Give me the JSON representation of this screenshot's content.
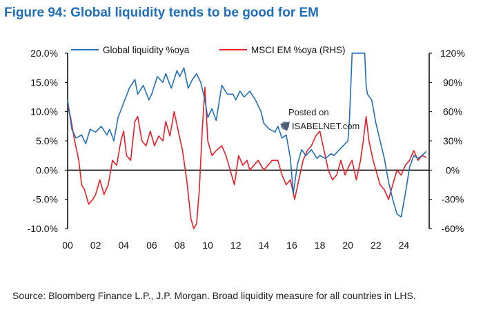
{
  "title": "Figure 94: Global liquidity tends to be good for EM",
  "source": "Source: Bloomberg Finance L.P., J.P. Morgan. Broad liquidity measure for all countries in LHS.",
  "watermark": {
    "posted": "Posted on",
    "site": "ISABELNET.com"
  },
  "colors": {
    "title": "#1f6fbf",
    "liquidity": "#1f6fbf",
    "msci": "#ee1c24",
    "axis": "#000000"
  },
  "chart_data": {
    "type": "line",
    "title": "Figure 94: Global liquidity tends to be good for EM",
    "xlabel": "",
    "ylabel": "",
    "x_ticks": [
      "00",
      "02",
      "04",
      "06",
      "08",
      "10",
      "12",
      "14",
      "16",
      "18",
      "20",
      "22",
      "24"
    ],
    "x_range": [
      2000,
      2025.8
    ],
    "y_left": {
      "ticks": [
        "20.0%",
        "15.0%",
        "10.0%",
        "5.0%",
        "0.0%",
        "-5.0%",
        "-10.0%"
      ],
      "range": [
        -10,
        20
      ]
    },
    "y_right": {
      "ticks": [
        "120%",
        "90%",
        "60%",
        "30%",
        "0%",
        "-30%",
        "-60%"
      ],
      "range": [
        -60,
        120
      ]
    },
    "legend_position": "top",
    "series": [
      {
        "name": "Global liquidity %oya",
        "axis": "left",
        "color": "#1f6fbf",
        "x": [
          2000,
          2000.3,
          2000.6,
          2001,
          2001.3,
          2001.6,
          2002,
          2002.4,
          2002.8,
          2003,
          2003.3,
          2003.6,
          2004,
          2004.4,
          2004.8,
          2005,
          2005.4,
          2005.8,
          2006,
          2006.4,
          2006.8,
          2007,
          2007.4,
          2007.8,
          2008,
          2008.3,
          2008.6,
          2008.9,
          2009.2,
          2009.5,
          2009.8,
          2010,
          2010.3,
          2010.6,
          2011,
          2011.4,
          2011.8,
          2012,
          2012.3,
          2012.6,
          2013,
          2013.4,
          2013.8,
          2014,
          2014.4,
          2014.8,
          2015,
          2015.3,
          2015.6,
          2015.9,
          2016.1,
          2016.4,
          2016.7,
          2017,
          2017.4,
          2017.8,
          2018,
          2018.4,
          2018.8,
          2019,
          2019.4,
          2019.8,
          2020,
          2020.1,
          2020.2,
          2020.3,
          2020.4,
          2020.5,
          2020.6,
          2021,
          2021.1,
          2021.2,
          2021.3,
          2021.4,
          2021.7,
          2022,
          2022.3,
          2022.6,
          2022.9,
          2023.2,
          2023.5,
          2023.8,
          2024.1,
          2024.4,
          2024.7,
          2025,
          2025.3,
          2025.6
        ],
        "values": [
          12.0,
          7.0,
          5.5,
          6.0,
          4.5,
          7.0,
          6.5,
          7.5,
          6.0,
          7.0,
          5.0,
          9.0,
          11.5,
          14.0,
          15.5,
          13.0,
          14.5,
          12.0,
          13.0,
          16.0,
          15.0,
          16.5,
          14.0,
          17.0,
          16.0,
          17.5,
          14.0,
          15.5,
          16.5,
          15.0,
          12.0,
          9.0,
          10.5,
          8.5,
          14.5,
          13.0,
          13.0,
          12.0,
          13.5,
          12.5,
          13.5,
          12.0,
          10.0,
          8.0,
          7.0,
          6.5,
          7.5,
          5.5,
          6.0,
          2.0,
          -4.0,
          1.0,
          3.5,
          2.5,
          3.5,
          2.0,
          2.5,
          2.0,
          2.8,
          2.5,
          3.5,
          4.5,
          5.0,
          8.0,
          14.0,
          20.0,
          20.0,
          20.0,
          20.0,
          20.0,
          20.0,
          20.0,
          14.5,
          13.0,
          12.0,
          8.0,
          5.0,
          2.0,
          -2.0,
          -5.0,
          -7.5,
          -8.0,
          -4.0,
          0.5,
          2.5,
          2.0,
          2.5,
          3.2
        ]
      },
      {
        "name": "MSCI EM %oya (RHS)",
        "axis": "right",
        "color": "#ee1c24",
        "x": [
          2000,
          2000.2,
          2000.5,
          2000.8,
          2001,
          2001.2,
          2001.5,
          2001.8,
          2002,
          2002.3,
          2002.6,
          2002.9,
          2003.2,
          2003.5,
          2003.8,
          2004,
          2004.2,
          2004.5,
          2004.8,
          2005,
          2005.3,
          2005.6,
          2005.9,
          2006.2,
          2006.5,
          2006.8,
          2007,
          2007.3,
          2007.6,
          2007.9,
          2008.2,
          2008.5,
          2008.8,
          2009,
          2009.2,
          2009.4,
          2009.6,
          2009.8,
          2010,
          2010.3,
          2010.6,
          2011,
          2011.3,
          2011.6,
          2011.9,
          2012.2,
          2012.5,
          2012.8,
          2013,
          2013.3,
          2013.6,
          2014,
          2014.3,
          2014.6,
          2015,
          2015.3,
          2015.6,
          2015.9,
          2016.2,
          2016.5,
          2016.8,
          2017.1,
          2017.4,
          2017.7,
          2018,
          2018.3,
          2018.6,
          2018.9,
          2019.2,
          2019.5,
          2019.8,
          2020.1,
          2020.3,
          2020.6,
          2020.9,
          2021.1,
          2021.3,
          2021.5,
          2021.8,
          2022,
          2022.3,
          2022.6,
          2022.9,
          2023.2,
          2023.5,
          2023.8,
          2024.1,
          2024.4,
          2024.7,
          2025,
          2025.3,
          2025.6
        ],
        "values": [
          66,
          55,
          30,
          10,
          -15,
          -20,
          -35,
          -30,
          -25,
          -10,
          -25,
          -15,
          10,
          5,
          30,
          40,
          15,
          10,
          50,
          55,
          30,
          25,
          40,
          25,
          35,
          30,
          50,
          35,
          60,
          40,
          20,
          -10,
          -50,
          -60,
          -55,
          -20,
          40,
          85,
          30,
          15,
          20,
          25,
          15,
          0,
          -15,
          15,
          5,
          10,
          0,
          5,
          10,
          0,
          5,
          10,
          10,
          -5,
          -15,
          -10,
          -30,
          -10,
          10,
          20,
          25,
          35,
          40,
          20,
          0,
          -10,
          -5,
          10,
          -5,
          5,
          10,
          -10,
          10,
          30,
          55,
          30,
          10,
          0,
          -15,
          -20,
          -30,
          -15,
          0,
          -5,
          5,
          10,
          20,
          10,
          15,
          13
        ]
      }
    ]
  }
}
